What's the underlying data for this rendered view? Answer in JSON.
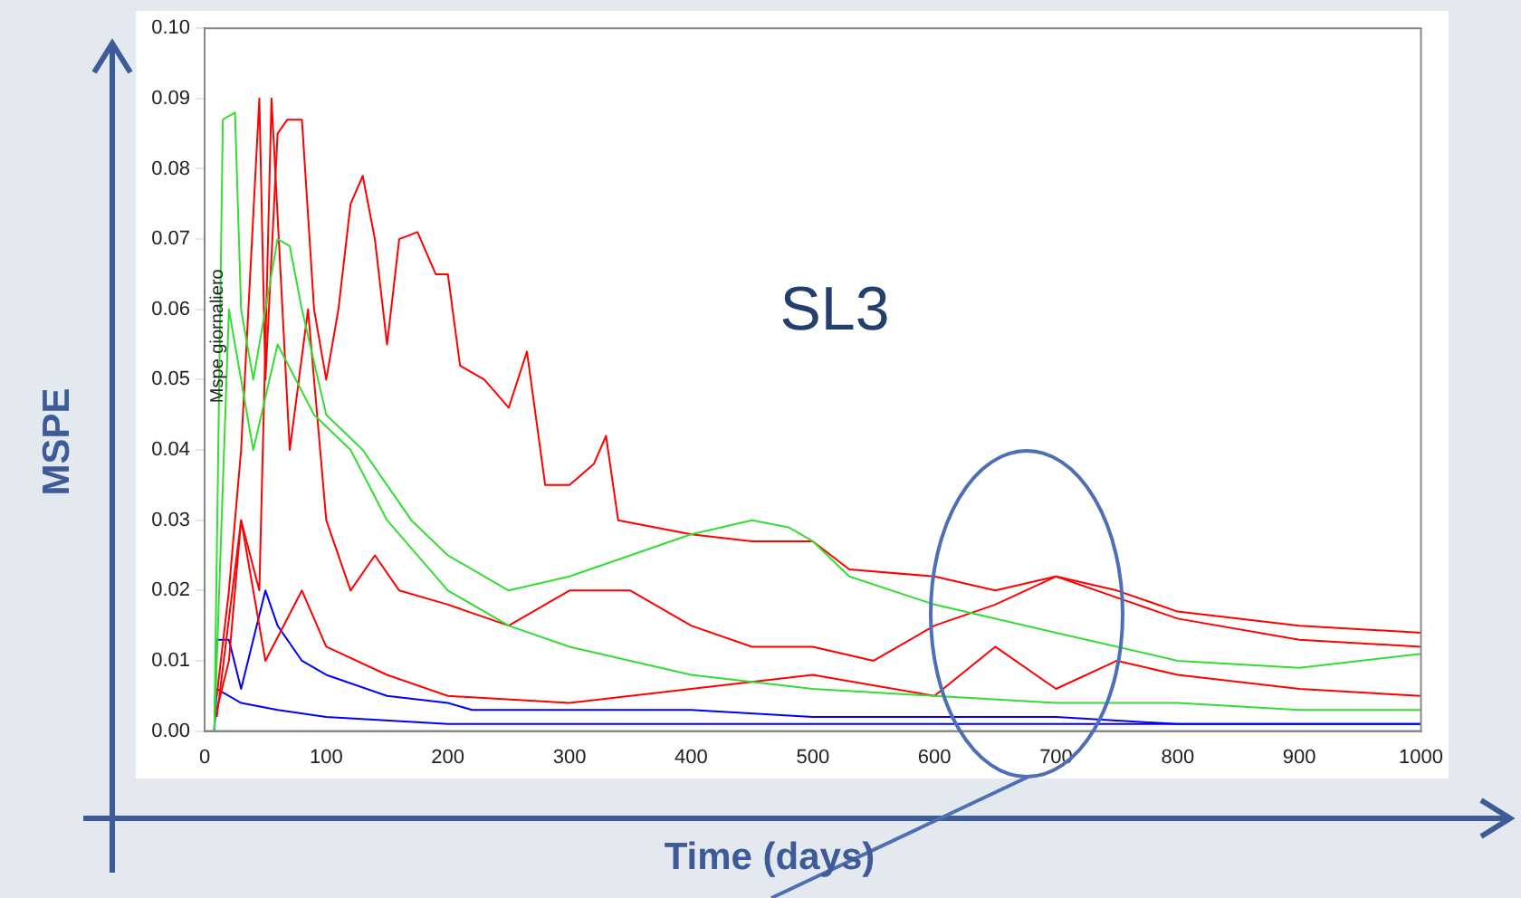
{
  "chart_data": {
    "type": "line",
    "xlabel": "Time (days)",
    "ylabel": "MSPE",
    "annotations": [
      "SL3",
      "Mspe giornaliero"
    ],
    "xlim": [
      0,
      1000
    ],
    "xticks": [
      0,
      100,
      200,
      300,
      400,
      500,
      600,
      700,
      800,
      900,
      1000
    ],
    "ylim": [
      0,
      0.1
    ],
    "yticks": [
      {
        "value": 0,
        "label": "0.00"
      },
      {
        "value": 0.01,
        "label": "0.01"
      },
      {
        "value": 0.02,
        "label": "0.02"
      },
      {
        "value": 0.03,
        "label": "0.03"
      },
      {
        "value": 0.04,
        "label": "0.04"
      },
      {
        "value": 0.05,
        "label": "0.05"
      },
      {
        "value": 0.06,
        "label": "0.06"
      },
      {
        "value": 0.07,
        "label": "0.07"
      },
      {
        "value": 0.08,
        "label": "0.08"
      },
      {
        "value": 0.09,
        "label": "0.09"
      },
      {
        "value": 0.1,
        "label": "0.10"
      }
    ],
    "grid": false,
    "legend": false,
    "marker": "none",
    "line_style": "solid",
    "series": [
      {
        "color": "#33dd33",
        "x": [
          8,
          15,
          25,
          30,
          40,
          60,
          70,
          80,
          100,
          130,
          150,
          170,
          200,
          250,
          300,
          350,
          400,
          450,
          480,
          500,
          530,
          600,
          700,
          800,
          900,
          1000
        ],
        "values": [
          0,
          0.087,
          0.088,
          0.06,
          0.05,
          0.07,
          0.069,
          0.06,
          0.045,
          0.04,
          0.035,
          0.03,
          0.025,
          0.02,
          0.022,
          0.025,
          0.028,
          0.03,
          0.029,
          0.027,
          0.022,
          0.018,
          0.014,
          0.01,
          0.009,
          0.011
        ]
      },
      {
        "color": "#33dd33",
        "x": [
          8,
          20,
          40,
          60,
          90,
          120,
          150,
          200,
          250,
          300,
          400,
          500,
          600,
          700,
          800,
          900,
          1000
        ],
        "values": [
          0,
          0.06,
          0.04,
          0.055,
          0.045,
          0.04,
          0.03,
          0.02,
          0.015,
          0.012,
          0.008,
          0.006,
          0.005,
          0.004,
          0.004,
          0.003,
          0.003
        ]
      },
      {
        "color": "#ff0000",
        "x": [
          10,
          20,
          30,
          45,
          50,
          60,
          68,
          80,
          90,
          100,
          110,
          120,
          130,
          140,
          150,
          160,
          175,
          190,
          200,
          210,
          230,
          250,
          265,
          280,
          300,
          320,
          330,
          340,
          400,
          450,
          500,
          530,
          600,
          650,
          700,
          750,
          800,
          900,
          1000
        ],
        "values": [
          0.005,
          0.02,
          0.04,
          0.09,
          0.05,
          0.085,
          0.087,
          0.087,
          0.06,
          0.05,
          0.06,
          0.075,
          0.079,
          0.07,
          0.055,
          0.07,
          0.071,
          0.065,
          0.065,
          0.052,
          0.05,
          0.046,
          0.054,
          0.035,
          0.035,
          0.038,
          0.042,
          0.03,
          0.028,
          0.027,
          0.027,
          0.023,
          0.022,
          0.02,
          0.022,
          0.02,
          0.017,
          0.015,
          0.014
        ]
      },
      {
        "color": "#ff0000",
        "x": [
          10,
          20,
          30,
          45,
          55,
          70,
          85,
          100,
          120,
          140,
          160,
          200,
          250,
          300,
          350,
          400,
          450,
          500,
          550,
          600,
          650,
          700,
          750,
          800,
          900,
          1000
        ],
        "values": [
          0.003,
          0.01,
          0.03,
          0.02,
          0.09,
          0.04,
          0.06,
          0.03,
          0.02,
          0.025,
          0.02,
          0.018,
          0.015,
          0.02,
          0.02,
          0.015,
          0.012,
          0.012,
          0.01,
          0.015,
          0.018,
          0.022,
          0.019,
          0.016,
          0.013,
          0.012
        ]
      },
      {
        "color": "#ff0000",
        "x": [
          10,
          30,
          50,
          80,
          100,
          150,
          200,
          300,
          400,
          500,
          600,
          650,
          700,
          750,
          800,
          900,
          1000
        ],
        "values": [
          0.002,
          0.03,
          0.01,
          0.02,
          0.012,
          0.008,
          0.005,
          0.004,
          0.006,
          0.008,
          0.005,
          0.012,
          0.006,
          0.01,
          0.008,
          0.006,
          0.005
        ]
      },
      {
        "color": "#0000ff",
        "x": [
          8,
          10,
          20,
          30,
          50,
          60,
          80,
          100,
          150,
          200,
          220,
          300,
          400,
          500,
          600,
          700,
          800,
          900,
          1000
        ],
        "values": [
          0,
          0.013,
          0.013,
          0.006,
          0.02,
          0.015,
          0.01,
          0.008,
          0.005,
          0.004,
          0.003,
          0.003,
          0.003,
          0.002,
          0.002,
          0.002,
          0.001,
          0.001,
          0.001
        ]
      },
      {
        "color": "#0000ff",
        "x": [
          8,
          10,
          30,
          60,
          100,
          200,
          400,
          600,
          800,
          1000
        ],
        "values": [
          0,
          0.006,
          0.004,
          0.003,
          0.002,
          0.001,
          0.001,
          0.001,
          0.001,
          0.001
        ]
      }
    ]
  }
}
